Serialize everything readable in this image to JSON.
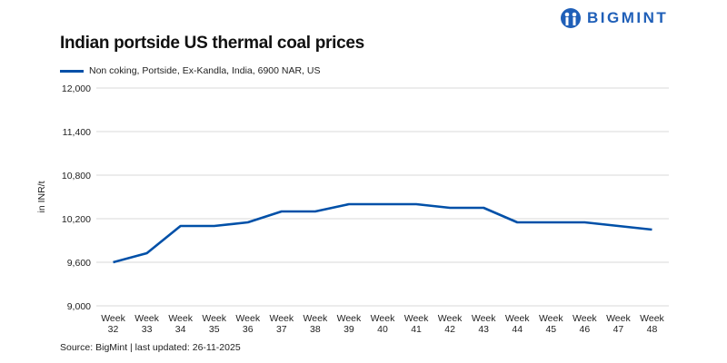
{
  "brand": {
    "name": "BIGMINT",
    "color": "#1f5fb8"
  },
  "source": "Source: BigMint | last updated: 26-11-2025",
  "chart_data": {
    "type": "line",
    "title": "Indian portside US thermal coal prices",
    "ylabel": "in INR/t",
    "xlabel": "",
    "ylim": [
      9000,
      12000
    ],
    "yticks": [
      9000,
      9600,
      10200,
      10800,
      11400,
      12000
    ],
    "ytick_labels": [
      "9,000",
      "9,600",
      "10,200",
      "10,800",
      "11,400",
      "12,000"
    ],
    "grid": true,
    "legend": "top-left",
    "categories": [
      "Week 32",
      "Week 33",
      "Week 34",
      "Week 35",
      "Week 36",
      "Week 37",
      "Week 38",
      "Week 39",
      "Week 40",
      "Week 41",
      "Week 42",
      "Week 43",
      "Week 44",
      "Week 45",
      "Week 46",
      "Week 47",
      "Week 48"
    ],
    "series": [
      {
        "name": "Non coking, Portside, Ex-Kandla, India, 6900 NAR, US",
        "color": "#0050a8",
        "values": [
          9600,
          9725,
          10100,
          10100,
          10150,
          10300,
          10300,
          10400,
          10400,
          10400,
          10350,
          10350,
          10150,
          10150,
          10150,
          10100,
          10050
        ]
      }
    ]
  }
}
